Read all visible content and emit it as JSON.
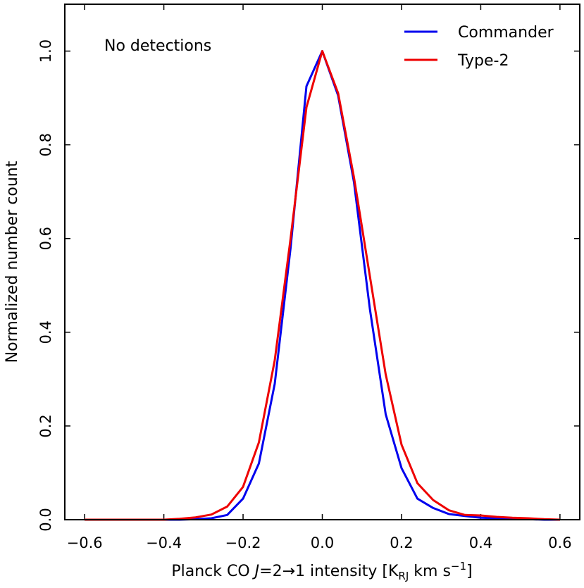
{
  "chart_data": {
    "type": "line",
    "title": "",
    "annotation": "No detections",
    "xlabel": {
      "prefix": "Planck CO ",
      "j_italic": "J",
      "transition": "=2→1 intensity [K",
      "subscript": "RJ",
      "units_mid": " km s",
      "superscript": "−1",
      "suffix": "]"
    },
    "ylabel": "Normalized number count",
    "xlim": [
      -0.65,
      0.65
    ],
    "ylim": [
      0.0,
      1.1
    ],
    "xticks": [
      -0.6,
      -0.4,
      -0.2,
      0.0,
      0.2,
      0.4,
      0.6
    ],
    "xtick_labels": [
      "−0.6",
      "−0.4",
      "−0.2",
      "0.0",
      "0.2",
      "0.4",
      "0.6"
    ],
    "yticks": [
      0.0,
      0.2,
      0.4,
      0.6,
      0.8,
      1.0
    ],
    "ytick_labels": [
      "0.0",
      "0.2",
      "0.4",
      "0.6",
      "0.8",
      "1.0"
    ],
    "legend_position": "top-right",
    "series": [
      {
        "name": "Commander",
        "color": "#0000ee",
        "x": [
          -0.6,
          -0.48,
          -0.4,
          -0.36,
          -0.32,
          -0.28,
          -0.24,
          -0.2,
          -0.16,
          -0.12,
          -0.08,
          -0.04,
          0.0,
          0.04,
          0.08,
          0.12,
          0.16,
          0.2,
          0.24,
          0.28,
          0.32,
          0.36,
          0.4,
          0.44,
          0.48,
          0.52,
          0.56,
          0.6
        ],
        "y": [
          0.0,
          0.0,
          0.0,
          0.0,
          0.001,
          0.003,
          0.01,
          0.045,
          0.12,
          0.29,
          0.58,
          0.925,
          1.0,
          0.905,
          0.72,
          0.45,
          0.225,
          0.11,
          0.045,
          0.025,
          0.012,
          0.008,
          0.004,
          0.003,
          0.002,
          0.001,
          0.0,
          0.0
        ]
      },
      {
        "name": "Type-2",
        "color": "#ee0000",
        "x": [
          -0.6,
          -0.48,
          -0.4,
          -0.36,
          -0.32,
          -0.28,
          -0.24,
          -0.2,
          -0.16,
          -0.12,
          -0.08,
          -0.04,
          0.0,
          0.04,
          0.08,
          0.12,
          0.16,
          0.2,
          0.24,
          0.28,
          0.32,
          0.36,
          0.4,
          0.44,
          0.48,
          0.52,
          0.56,
          0.6
        ],
        "y": [
          0.0,
          0.0,
          0.0,
          0.002,
          0.005,
          0.011,
          0.028,
          0.07,
          0.165,
          0.34,
          0.6,
          0.88,
          1.0,
          0.91,
          0.73,
          0.52,
          0.31,
          0.16,
          0.078,
          0.042,
          0.02,
          0.01,
          0.009,
          0.006,
          0.004,
          0.003,
          0.001,
          0.0
        ]
      }
    ]
  }
}
